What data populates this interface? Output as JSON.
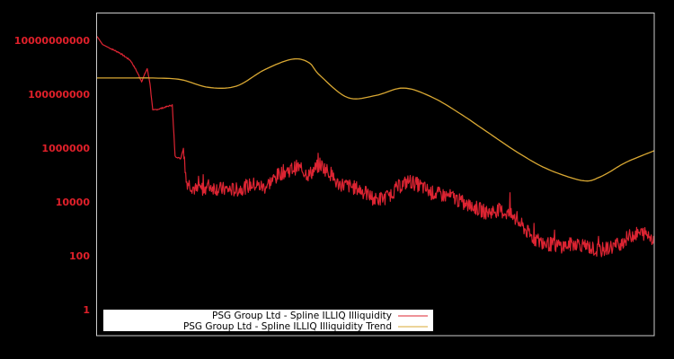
{
  "colors": {
    "background": "#000000",
    "frame": "#cccccc",
    "series_illiq": "#dc2432",
    "series_trend": "#d9a833",
    "tick_label": "#e0202a",
    "legend_bg": "#ffffff"
  },
  "legend": {
    "items": [
      {
        "label": "PSG Group Ltd - Spline ILLIQ Illiquidity",
        "color": "#dc2432"
      },
      {
        "label": "PSG Group Ltd - Spline ILLIQ Illiquidity Trend",
        "color": "#d9a833"
      }
    ]
  },
  "chart_data": {
    "type": "line",
    "title": "",
    "xlabel": "",
    "ylabel": "",
    "yscale": "log",
    "ylim": [
      0.3,
      20000000000
    ],
    "yticks": [
      {
        "label": "10000000000",
        "value": 10000000000
      },
      {
        "label": "100000000",
        "value": 100000000
      },
      {
        "label": "1000000",
        "value": 1000000
      },
      {
        "label": "10000",
        "value": 10000
      },
      {
        "label": "100",
        "value": 100
      },
      {
        "label": "1",
        "value": 1
      }
    ],
    "x_range": [
      0,
      100
    ],
    "grid": false,
    "legend_position": "lower-left",
    "series": [
      {
        "name": "PSG Group Ltd - Spline ILLIQ Illiquidity",
        "x": [
          0,
          1,
          2,
          4,
          6,
          7,
          8,
          9,
          9.5,
          10,
          11,
          12,
          13.5,
          14,
          15,
          15.5,
          16,
          18,
          20,
          22,
          25,
          28,
          30,
          33,
          36,
          38,
          40,
          42,
          43,
          45,
          47,
          50,
          52,
          54,
          56,
          58,
          60,
          62,
          64,
          66,
          68,
          70,
          72,
          74,
          76,
          78,
          80,
          82,
          84,
          86,
          88,
          90,
          92,
          94,
          96,
          98,
          100
        ],
        "values": [
          14000000000,
          7000000000,
          5500000000,
          3500000000,
          1800000000,
          800000000,
          300000000,
          900000000,
          250000000,
          25000000,
          28000000,
          32000000,
          40000000,
          500000,
          400000,
          1000000,
          60000,
          25000,
          40000,
          30000,
          28000,
          45000,
          35000,
          120000,
          200000,
          100000,
          250000,
          110000,
          50000,
          40000,
          30000,
          12000,
          15000,
          35000,
          60000,
          40000,
          22000,
          18000,
          15000,
          8000,
          6000,
          4000,
          5000,
          3500,
          1500,
          500,
          300,
          250,
          230,
          300,
          220,
          150,
          200,
          300,
          600,
          700,
          450
        ]
      },
      {
        "name": "PSG Group Ltd - Spline ILLIQ Illiquidity Trend",
        "x": [
          0,
          5,
          10,
          15,
          20,
          25,
          30,
          35,
          38,
          40,
          45,
          50,
          55,
          60,
          65,
          70,
          75,
          80,
          85,
          88,
          90,
          92,
          95,
          100
        ],
        "values": [
          400000000,
          400000000,
          400000000,
          350000000,
          180000000,
          200000000,
          800000000,
          2000000000,
          1500000000,
          500000000,
          75000000,
          90000000,
          170000000,
          80000000,
          20000000,
          4000000,
          800000,
          200000,
          80000,
          60000,
          80000,
          130000,
          300000,
          800000
        ]
      }
    ]
  }
}
